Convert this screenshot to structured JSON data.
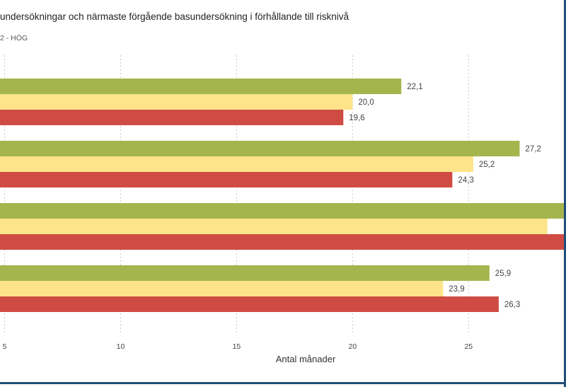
{
  "header": {
    "title": "undersökningar och närmaste förgående basundersökning i förhållande till risknivå",
    "subtitle": "2 - HÖG"
  },
  "colors": {
    "green": "#a4b54d",
    "yellow": "#fde48a",
    "red": "#cf4c44",
    "grid": "#c9c9c9",
    "frame": "#1f4e79"
  },
  "chart_data": {
    "type": "bar",
    "orientation": "horizontal",
    "xlabel": "Antal månader",
    "xlim": [
      4.8,
      29.2
    ],
    "xticks": [
      5,
      10,
      15,
      20,
      25
    ],
    "grid": true,
    "groups": [
      {
        "bars": [
          {
            "value": 22.1,
            "label": "22,1",
            "color": "green"
          },
          {
            "value": 20.0,
            "label": "20,0",
            "color": "yellow"
          },
          {
            "value": 19.6,
            "label": "19,6",
            "color": "red"
          }
        ]
      },
      {
        "bars": [
          {
            "value": 27.2,
            "label": "27,2",
            "color": "green"
          },
          {
            "value": 25.2,
            "label": "25,2",
            "color": "yellow"
          },
          {
            "value": 24.3,
            "label": "24,3",
            "color": "red"
          }
        ]
      },
      {
        "bars": [
          {
            "value": 29.3,
            "label": "",
            "color": "green"
          },
          {
            "value": 28.4,
            "label": "",
            "color": "yellow"
          },
          {
            "value": 29.3,
            "label": "",
            "color": "red"
          }
        ]
      },
      {
        "bars": [
          {
            "value": 25.9,
            "label": "25,9",
            "color": "green"
          },
          {
            "value": 23.9,
            "label": "23,9",
            "color": "yellow"
          },
          {
            "value": 26.3,
            "label": "26,3",
            "color": "red"
          }
        ]
      }
    ]
  }
}
